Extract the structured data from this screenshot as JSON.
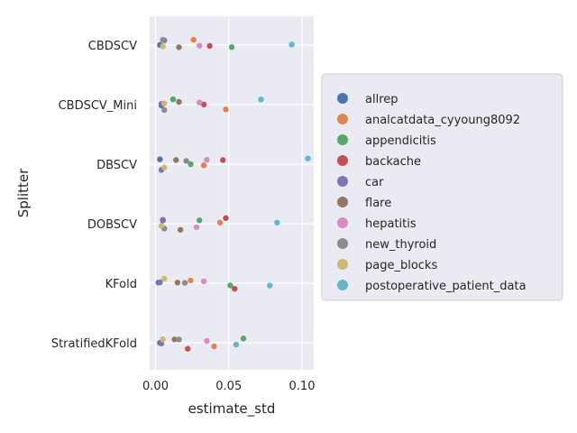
{
  "chart_data": {
    "type": "scatter",
    "xlabel": "estimate_std",
    "ylabel": "Splitter",
    "xlim": [
      -0.004,
      0.108
    ],
    "x_ticks": [
      0.0,
      0.05,
      0.1
    ],
    "x_tick_labels": [
      "0.00",
      "0.05",
      "0.10"
    ],
    "categories": [
      "CBDSCV",
      "CBDSCV_Mini",
      "DBSCV",
      "DOBSCV",
      "KFold",
      "StratifiedKFold"
    ],
    "grid": true,
    "legend_position": "right",
    "series": [
      {
        "name": "allrep",
        "color": "#4c72b0",
        "values": [
          0.003,
          0.004,
          0.003,
          0.005,
          0.002,
          0.003
        ]
      },
      {
        "name": "analcatdata_cyyoung8092",
        "color": "#dd8452",
        "values": [
          0.026,
          0.048,
          0.033,
          0.044,
          0.024,
          0.04
        ]
      },
      {
        "name": "appendicitis",
        "color": "#55a868",
        "values": [
          0.052,
          0.012,
          0.024,
          0.03,
          0.051,
          0.06
        ]
      },
      {
        "name": "backache",
        "color": "#c44e52",
        "values": [
          0.037,
          0.033,
          0.046,
          0.048,
          0.054,
          0.022
        ]
      },
      {
        "name": "car",
        "color": "#8172b3",
        "values": [
          0.006,
          0.004,
          0.004,
          0.005,
          0.003,
          0.004
        ]
      },
      {
        "name": "flare",
        "color": "#937860",
        "values": [
          0.016,
          0.016,
          0.014,
          0.017,
          0.015,
          0.013
        ]
      },
      {
        "name": "hepatitis",
        "color": "#da8bc3",
        "values": [
          0.03,
          0.03,
          0.035,
          0.028,
          0.033,
          0.035
        ]
      },
      {
        "name": "new_thyroid",
        "color": "#8c8c8c",
        "values": [
          0.005,
          0.006,
          0.021,
          0.006,
          0.02,
          0.016
        ]
      },
      {
        "name": "page_blocks",
        "color": "#ccb974",
        "values": [
          0.005,
          0.006,
          0.006,
          0.004,
          0.006,
          0.005
        ]
      },
      {
        "name": "postoperative_patient_data",
        "color": "#64b5cd",
        "values": [
          0.093,
          0.072,
          0.104,
          0.083,
          0.078,
          0.055
        ]
      }
    ]
  }
}
